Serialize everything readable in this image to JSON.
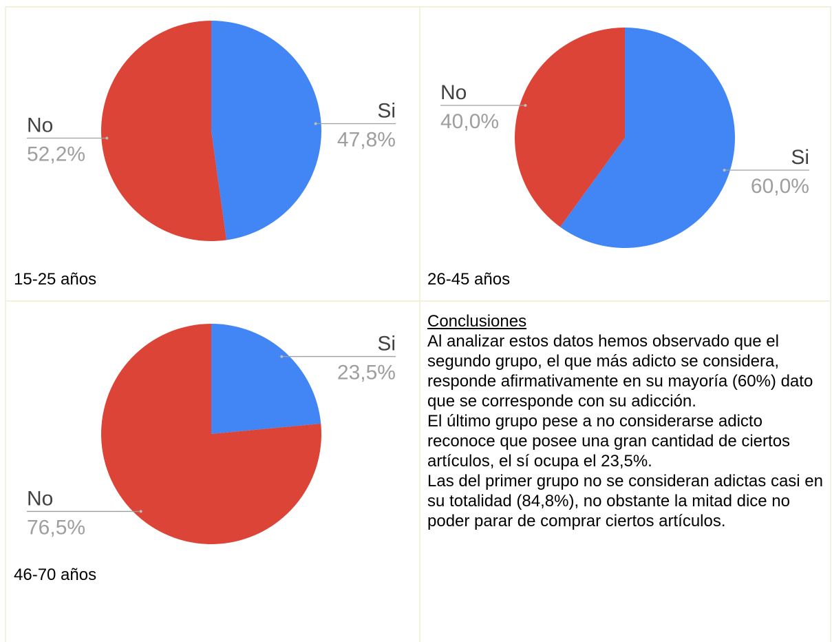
{
  "chart_data": [
    {
      "type": "pie",
      "title": "15-25 años",
      "categories": [
        "Si",
        "No"
      ],
      "values": [
        47.8,
        52.2
      ],
      "value_labels": [
        "47,8%",
        "52,2%"
      ],
      "colors": [
        "#4285f4",
        "#db4437"
      ]
    },
    {
      "type": "pie",
      "title": "26-45 años",
      "categories": [
        "Si",
        "No"
      ],
      "values": [
        60.0,
        40.0
      ],
      "value_labels": [
        "60,0%",
        "40,0%"
      ],
      "colors": [
        "#4285f4",
        "#db4437"
      ]
    },
    {
      "type": "pie",
      "title": "46-70 años",
      "categories": [
        "Si",
        "No"
      ],
      "values": [
        23.5,
        76.5
      ],
      "value_labels": [
        "23,5%",
        "76,5%"
      ],
      "colors": [
        "#4285f4",
        "#db4437"
      ]
    }
  ],
  "conclusions": {
    "heading": "Conclusiones",
    "paragraphs": [
      "Al analizar estos datos hemos observado que el segundo grupo, el que más adicto se considera, responde afirmativamente en su mayoría (60%) dato que se corresponde con su adicción.",
      "El último grupo pese a no considerarse adicto reconoce que posee una gran cantidad de ciertos artículos, el sí ocupa el 23,5%.",
      "Las del primer grupo no se consideran adictas casi en su totalidad (84,8%), no obstante la mitad dice no poder parar de comprar ciertos artículos."
    ]
  }
}
